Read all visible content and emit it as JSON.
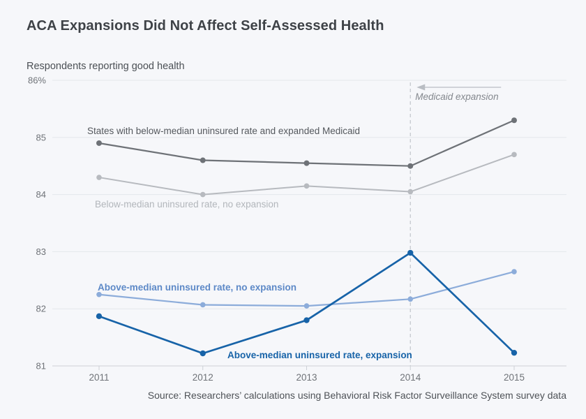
{
  "page": {
    "title": "ACA Expansions Did Not Affect Self-Assessed Health",
    "subtitle": "Respondents reporting good health",
    "source": "Source: Researchers’ calculations using Behavioral Risk Factor Surveillance System survey data"
  },
  "chart_data": {
    "type": "line",
    "title": "ACA Expansions Did Not Affect Self-Assessed Health",
    "ylabel": "Respondents reporting good health",
    "x": [
      2011,
      2012,
      2013,
      2014,
      2015
    ],
    "ylim": [
      81,
      86
    ],
    "yticks": [
      86,
      85,
      84,
      83,
      82,
      81
    ],
    "ytick_labels": [
      "86%",
      "85",
      "84",
      "83",
      "82",
      "81"
    ],
    "grid": true,
    "legend_position": "inline-labels-on-chart",
    "series": [
      {
        "name": "States with below-median uninsured rate and expanded Medicaid",
        "color": "#6e7277",
        "label_color": "#54585d",
        "values": [
          84.9,
          84.6,
          84.55,
          84.5,
          85.3
        ]
      },
      {
        "name": "Below-median uninsured rate, no expansion",
        "color": "#b7babf",
        "label_color": "#b2b6bb",
        "values": [
          84.3,
          84.0,
          84.15,
          84.05,
          84.7
        ]
      },
      {
        "name": "Above-median uninsured rate, no expansion",
        "color": "#8cacda",
        "label_color": "#5d89c7",
        "values": [
          82.25,
          82.07,
          82.05,
          82.17,
          82.65
        ]
      },
      {
        "name": "Above-median uninsured rate, expansion",
        "color": "#1763a8",
        "label_color": "#1763a8",
        "values": [
          81.87,
          81.22,
          81.8,
          82.98,
          81.23
        ]
      }
    ],
    "annotation": {
      "text": "Medicaid expansion",
      "x": 2014,
      "style": "dashed-vertical-line-with-left-arrow"
    },
    "colors": {
      "background": "#f6f7fa",
      "gridline": "#e4e7eb",
      "axis_line": "#cdd1d6",
      "tick_label": "#6f7378",
      "dashed_line": "#c5c9cf",
      "arrow": "#b9bdc3",
      "annotation_text": "#84888e"
    }
  }
}
